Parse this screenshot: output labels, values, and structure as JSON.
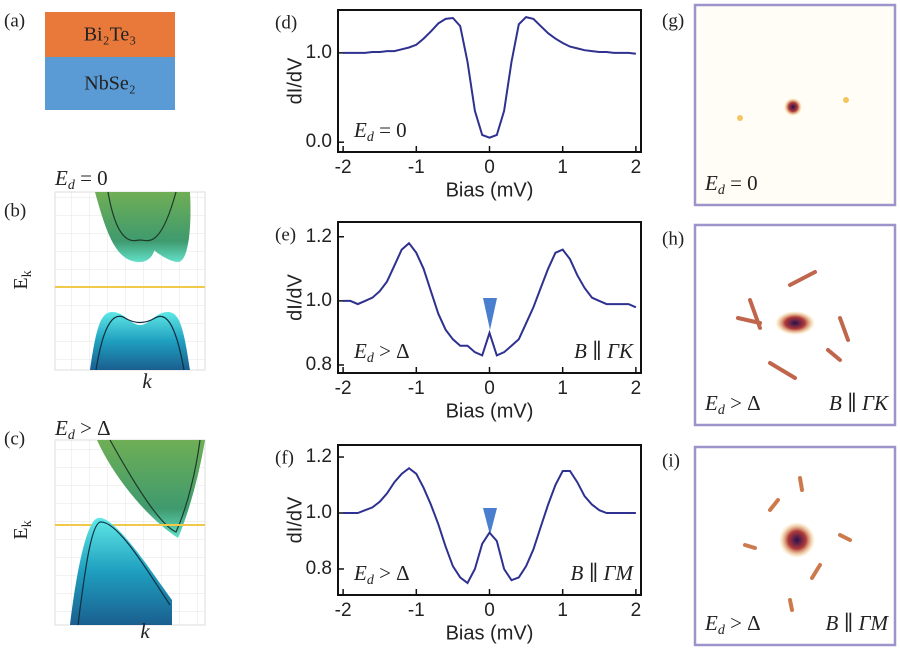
{
  "panels": {
    "a": {
      "label": "(a)",
      "layers": [
        "Bi₂Te₃",
        "NbSe₂"
      ]
    },
    "b": {
      "label": "(b)",
      "condition": {
        "main": "E",
        "sub": "d",
        "rest": " = 0"
      },
      "ylabel": {
        "main": "E",
        "sub": "k"
      },
      "xlabel": "k"
    },
    "c": {
      "label": "(c)",
      "condition": {
        "main": "E",
        "sub": "d",
        "rest": " > Δ"
      },
      "ylabel": {
        "main": "E",
        "sub": "k"
      },
      "xlabel": "k"
    },
    "g": {
      "label": "(g)",
      "annotations": [
        {
          "main": "E",
          "sub": "d",
          "rest": " = 0"
        }
      ]
    },
    "h": {
      "label": "(h)",
      "annotations": [
        {
          "main": "E",
          "sub": "d",
          "rest": " > Δ"
        },
        {
          "main": "B ∥ ΓK"
        }
      ]
    },
    "i": {
      "label": "(i)",
      "annotations": [
        {
          "main": "E",
          "sub": "d",
          "rest": " > Δ"
        },
        {
          "main": "B ∥ ΓM"
        }
      ]
    }
  },
  "chart_data": [
    {
      "type": "line",
      "panel_label": "(d)",
      "xlabel": "Bias (mV)",
      "ylabel": "dI/dV",
      "color": "#2e318f",
      "x": [
        -2,
        -1.9,
        -1.8,
        -1.7,
        -1.6,
        -1.5,
        -1.4,
        -1.3,
        -1.2,
        -1.1,
        -1,
        -0.9,
        -0.8,
        -0.7,
        -0.6,
        -0.5,
        -0.4,
        -0.3,
        -0.2,
        -0.1,
        0,
        0.1,
        0.2,
        0.3,
        0.4,
        0.5,
        0.6,
        0.7,
        0.8,
        0.9,
        1,
        1.1,
        1.2,
        1.3,
        1.4,
        1.5,
        1.6,
        1.7,
        1.8,
        1.9,
        2
      ],
      "values": [
        1.0,
        1.0,
        1.0,
        1.0,
        1.01,
        1.01,
        1.02,
        1.02,
        1.04,
        1.06,
        1.09,
        1.16,
        1.24,
        1.33,
        1.38,
        1.39,
        1.3,
        0.9,
        0.35,
        0.08,
        0.05,
        0.08,
        0.35,
        0.9,
        1.32,
        1.4,
        1.38,
        1.3,
        1.22,
        1.16,
        1.11,
        1.07,
        1.05,
        1.03,
        1.02,
        1.01,
        1.01,
        1.0,
        1.0,
        1.0,
        0.99
      ],
      "xlim": [
        -2.07,
        2.07
      ],
      "ylim": [
        -0.11,
        1.48
      ],
      "xticks": [
        -2,
        -1,
        0,
        1,
        2
      ],
      "yticks": [
        {
          "value": 0,
          "label": "0.0"
        },
        {
          "value": 1,
          "label": "1.0"
        }
      ],
      "annotations": [
        {
          "main": "E",
          "sub": "d",
          "rest": " = 0"
        }
      ]
    },
    {
      "type": "line",
      "panel_label": "(e)",
      "xlabel": "Bias (mV)",
      "ylabel": "dI/dV",
      "color": "#2e318f",
      "x": [
        -2,
        -1.9,
        -1.8,
        -1.7,
        -1.6,
        -1.5,
        -1.4,
        -1.3,
        -1.2,
        -1.1,
        -1,
        -0.9,
        -0.8,
        -0.7,
        -0.6,
        -0.5,
        -0.4,
        -0.3,
        -0.2,
        -0.1,
        0,
        0.1,
        0.2,
        0.3,
        0.4,
        0.5,
        0.6,
        0.7,
        0.8,
        0.9,
        1,
        1.1,
        1.2,
        1.3,
        1.4,
        1.5,
        1.6,
        1.7,
        1.8,
        1.9,
        2
      ],
      "values": [
        1.0,
        1.0,
        0.99,
        1.0,
        1.01,
        1.03,
        1.06,
        1.11,
        1.16,
        1.18,
        1.15,
        1.1,
        1.03,
        0.96,
        0.91,
        0.88,
        0.86,
        0.86,
        0.84,
        0.83,
        0.9,
        0.83,
        0.84,
        0.86,
        0.88,
        0.93,
        0.98,
        1.04,
        1.1,
        1.15,
        1.16,
        1.13,
        1.08,
        1.04,
        1.01,
        1.0,
        0.99,
        0.99,
        0.99,
        0.99,
        0.98
      ],
      "xlim": [
        -2.07,
        2.07
      ],
      "ylim": [
        0.775,
        1.246
      ],
      "xticks": [
        -2,
        -1,
        0,
        1,
        2
      ],
      "yticks": [
        {
          "value": 0.8,
          "label": "0.8"
        },
        {
          "value": 1,
          "label": "1.0"
        },
        {
          "value": 1.2,
          "label": "1.2"
        }
      ],
      "annotations": [
        {
          "main": "E",
          "sub": "d",
          "rest": " > Δ"
        },
        {
          "main": "B ∥ ΓK"
        }
      ]
    },
    {
      "type": "line",
      "panel_label": "(f)",
      "xlabel": "Bias (mV)",
      "ylabel": "dI/dV",
      "color": "#2e318f",
      "x": [
        -2,
        -1.9,
        -1.8,
        -1.7,
        -1.6,
        -1.5,
        -1.4,
        -1.3,
        -1.2,
        -1.1,
        -1,
        -0.9,
        -0.8,
        -0.7,
        -0.6,
        -0.5,
        -0.4,
        -0.3,
        -0.2,
        -0.1,
        0,
        0.1,
        0.2,
        0.3,
        0.4,
        0.5,
        0.6,
        0.7,
        0.8,
        0.9,
        1,
        1.1,
        1.2,
        1.3,
        1.4,
        1.5,
        1.6,
        1.7,
        1.8,
        1.9,
        2
      ],
      "values": [
        1.0,
        1.0,
        1.0,
        1.01,
        1.02,
        1.04,
        1.07,
        1.11,
        1.14,
        1.16,
        1.14,
        1.09,
        1.03,
        0.96,
        0.88,
        0.81,
        0.77,
        0.75,
        0.8,
        0.89,
        0.93,
        0.9,
        0.8,
        0.76,
        0.77,
        0.81,
        0.87,
        0.95,
        1.03,
        1.1,
        1.15,
        1.15,
        1.11,
        1.06,
        1.03,
        1.01,
        1.0,
        1.0,
        1.0,
        1.0,
        1.0
      ],
      "xlim": [
        -2.07,
        2.07
      ],
      "ylim": [
        0.707,
        1.243
      ],
      "xticks": [
        -2,
        -1,
        0,
        1,
        2
      ],
      "yticks": [
        {
          "value": 0.8,
          "label": "0.8"
        },
        {
          "value": 1,
          "label": "1.0"
        },
        {
          "value": 1.2,
          "label": "1.2"
        }
      ],
      "annotations": [
        {
          "main": "E",
          "sub": "d",
          "rest": " > Δ"
        },
        {
          "main": "B ∥ ΓM"
        }
      ]
    }
  ]
}
